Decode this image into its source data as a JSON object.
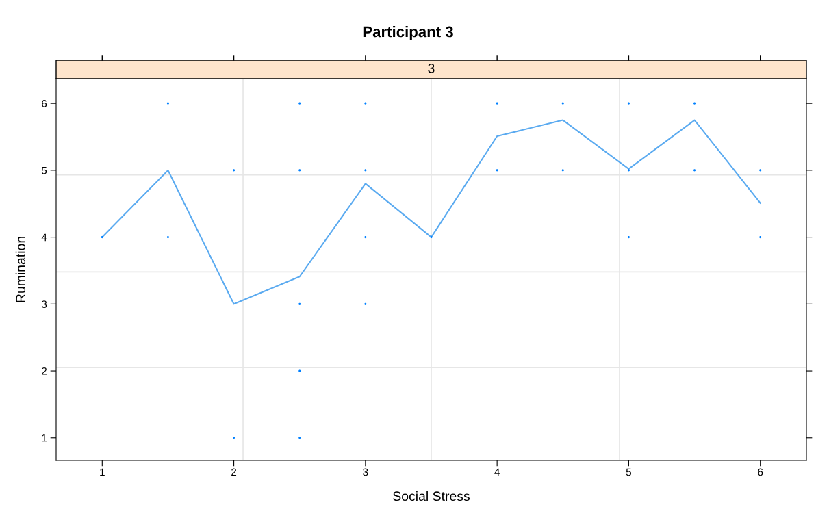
{
  "chart_data": {
    "type": "scatter",
    "title": "Participant 3",
    "subtitle": "3",
    "xlabel": "Social Stress",
    "ylabel": "Rumination",
    "xlim": [
      0.65,
      6.35
    ],
    "ylim": [
      0.66,
      6.37
    ],
    "xticks": [
      1,
      2,
      3,
      4,
      5,
      6
    ],
    "yticks": [
      1,
      2,
      3,
      4,
      5,
      6
    ],
    "marker": "circle",
    "grid": false,
    "ref_lines": [
      {
        "axis": "x",
        "value": 2.07,
        "label": null,
        "color": "#e6e6e6"
      },
      {
        "axis": "x",
        "value": 3.5,
        "label": null,
        "color": "#e6e6e6"
      },
      {
        "axis": "x",
        "value": 4.93,
        "label": null,
        "color": "#e6e6e6"
      },
      {
        "axis": "y",
        "value": 2.05,
        "label": null,
        "color": "#e6e6e6"
      },
      {
        "axis": "y",
        "value": 3.48,
        "label": null,
        "color": "#e6e6e6"
      },
      {
        "axis": "y",
        "value": 4.93,
        "label": null,
        "color": "#e6e6e6"
      }
    ],
    "series": [
      {
        "color": "#0080ff",
        "x": [
          1,
          1.5,
          1.5,
          2,
          2,
          2.5,
          2.5,
          2.5,
          2.5,
          2.5,
          3,
          3,
          3,
          3,
          3.5,
          4,
          4,
          4.5,
          4.5,
          5,
          5,
          5,
          5.5,
          5.5,
          6,
          6
        ],
        "values": [
          4,
          6,
          4,
          5,
          1,
          6,
          5,
          3,
          2,
          1,
          6,
          5,
          4,
          3,
          4,
          6,
          5,
          6,
          5,
          6,
          5,
          4,
          6,
          5,
          5,
          4
        ]
      },
      {
        "type": "line",
        "color": "#5aaaf0",
        "marker": "none",
        "x": [
          1,
          1.5,
          2,
          2.5,
          3,
          3.5,
          4,
          4.5,
          5,
          5.5,
          6
        ],
        "values": [
          4,
          5,
          3,
          3.41,
          4.8,
          4,
          5.51,
          5.75,
          5.02,
          5.75,
          4.51
        ]
      }
    ]
  }
}
